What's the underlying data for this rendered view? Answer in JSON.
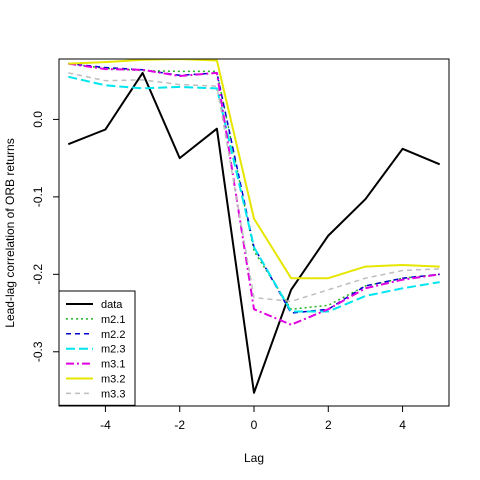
{
  "chart_data": {
    "type": "line",
    "xlabel": "Lag",
    "ylabel": "Lead-lag correlation of ORB returns",
    "x": [
      -5,
      -4,
      -3,
      -2,
      -1,
      0,
      1,
      2,
      3,
      4,
      5
    ],
    "xlim": [
      -5.25,
      5.25
    ],
    "ylim": [
      -0.37,
      0.078
    ],
    "xticks": [
      -4,
      -2,
      0,
      2,
      4
    ],
    "xtick_labels": [
      "-4",
      "-2",
      "0",
      "2",
      "4"
    ],
    "yticks": [
      0.0,
      -0.1,
      -0.2,
      -0.3
    ],
    "ytick_labels": [
      "0.0",
      "-0.1",
      "-0.2",
      "-0.3"
    ],
    "grid": false,
    "legend_position": "bottom-left",
    "series": [
      {
        "name": "data",
        "color": "#000000",
        "dash": "solid",
        "width": 2,
        "values": [
          -0.032,
          -0.013,
          0.06,
          -0.05,
          -0.012,
          -0.353,
          -0.22,
          -0.15,
          -0.103,
          -0.038,
          -0.058
        ]
      },
      {
        "name": "m2.1",
        "color": "#22b422",
        "dash": "dotted",
        "width": 1.5,
        "values": [
          0.072,
          0.066,
          0.063,
          0.062,
          0.062,
          -0.17,
          -0.245,
          -0.24,
          -0.215,
          -0.205,
          -0.2
        ]
      },
      {
        "name": "m2.2",
        "color": "#0000cd",
        "dash": "dashed",
        "width": 1.5,
        "values": [
          0.072,
          0.067,
          0.064,
          0.057,
          0.06,
          -0.165,
          -0.25,
          -0.245,
          -0.215,
          -0.205,
          -0.2
        ]
      },
      {
        "name": "m2.3",
        "color": "#00e5ee",
        "dash": "longdash",
        "width": 2,
        "values": [
          0.055,
          0.044,
          0.04,
          0.042,
          0.04,
          -0.165,
          -0.248,
          -0.248,
          -0.228,
          -0.218,
          -0.21
        ]
      },
      {
        "name": "m3.1",
        "color": "#e000e0",
        "dash": "dashdot",
        "width": 2,
        "values": [
          0.072,
          0.065,
          0.064,
          0.056,
          0.06,
          -0.245,
          -0.265,
          -0.245,
          -0.218,
          -0.207,
          -0.2
        ]
      },
      {
        "name": "m3.2",
        "color": "#e6e600",
        "dash": "solid",
        "width": 2,
        "values": [
          0.072,
          0.074,
          0.077,
          0.078,
          0.076,
          -0.128,
          -0.205,
          -0.205,
          -0.19,
          -0.188,
          -0.19
        ]
      },
      {
        "name": "m3.3",
        "color": "#bebebe",
        "dash": "dashed",
        "width": 1.5,
        "values": [
          0.06,
          0.05,
          0.051,
          0.045,
          0.043,
          -0.23,
          -0.235,
          -0.22,
          -0.205,
          -0.195,
          -0.193
        ]
      }
    ]
  }
}
